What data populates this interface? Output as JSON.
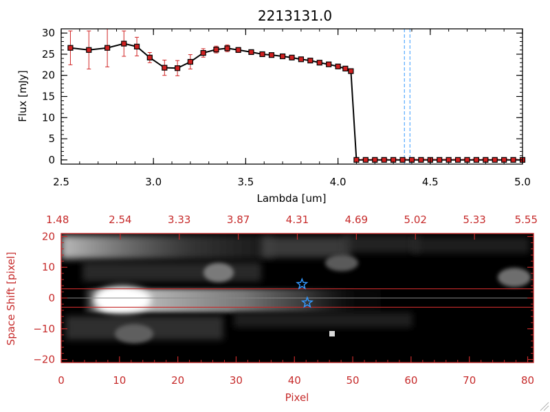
{
  "chart_data": [
    {
      "type": "line",
      "title": "2213131.0",
      "xlabel": "Lambda [um]",
      "ylabel": "Flux [mJy]",
      "xlim": [
        2.5,
        5.0
      ],
      "ylim": [
        -1,
        31
      ],
      "xticks": [
        "2.5",
        "3.0",
        "3.5",
        "4.0",
        "4.5",
        "5.0"
      ],
      "yticks": [
        "0",
        "5",
        "10",
        "15",
        "20",
        "25",
        "30"
      ],
      "x": [
        2.55,
        2.65,
        2.75,
        2.84,
        2.91,
        2.98,
        3.06,
        3.13,
        3.2,
        3.27,
        3.34,
        3.4,
        3.46,
        3.53,
        3.59,
        3.64,
        3.7,
        3.75,
        3.8,
        3.85,
        3.9,
        3.95,
        4.0,
        4.04,
        4.07
      ],
      "y": [
        26.5,
        26.0,
        26.5,
        27.5,
        26.8,
        24.2,
        21.8,
        21.7,
        23.2,
        25.3,
        26.1,
        26.4,
        26.0,
        25.5,
        25.0,
        24.8,
        24.5,
        24.2,
        23.8,
        23.5,
        23.0,
        22.6,
        22.1,
        21.6,
        21.0
      ],
      "yerr": [
        4.0,
        4.5,
        4.5,
        3.0,
        2.2,
        1.2,
        1.8,
        1.8,
        1.7,
        1.0,
        0.8,
        0.8,
        0.6,
        0.5,
        0.5,
        0.5,
        0.5,
        0.5,
        0.5,
        0.5,
        0.5,
        0.5,
        0.5,
        0.5,
        0.5
      ],
      "zero_segment": {
        "x": [
          4.1,
          4.15,
          4.2,
          4.25,
          4.3,
          4.35,
          4.4,
          4.45,
          4.5,
          4.55,
          4.6,
          4.65,
          4.7,
          4.75,
          4.8,
          4.85,
          4.9,
          4.95,
          5.0
        ],
        "y": 0
      },
      "vlines": [
        4.36,
        4.39
      ],
      "vline_color": "#3399ff",
      "marker_color": "#d02020",
      "line_color": "#000000"
    },
    {
      "type": "heatmap",
      "xlabel": "Pixel",
      "ylabel": "Space Shift [pixel]",
      "xlim": [
        0,
        81
      ],
      "ylim": [
        -21,
        21
      ],
      "xticks": [
        "0",
        "10",
        "20",
        "30",
        "40",
        "50",
        "60",
        "70",
        "80"
      ],
      "yticks": [
        "−20",
        "−10",
        "0",
        "10",
        "20"
      ],
      "top_ticks": [
        "1.48",
        "2.54",
        "3.33",
        "3.87",
        "4.31",
        "4.69",
        "5.02",
        "5.33",
        "5.55"
      ],
      "extraction_band": [
        -3,
        3
      ],
      "star_markers": [
        {
          "x": 41.3,
          "y": 4.5
        },
        {
          "x": 42.2,
          "y": -1.5
        }
      ],
      "axis_color": "#c62a2a",
      "star_color": "#3399ff"
    }
  ]
}
